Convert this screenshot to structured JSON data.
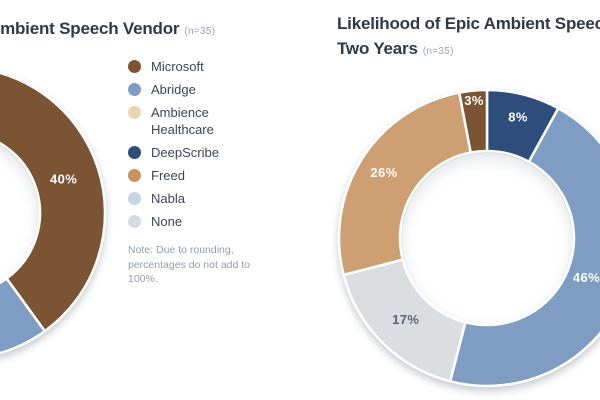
{
  "page": {
    "background": "#ffffff"
  },
  "chart_data": [
    {
      "type": "donut",
      "title": "Ambient Speech Vendor",
      "n_label": "(n=35)",
      "sample_size": 35,
      "note": "Note: Due to rounding, percentages do not add to 100%.",
      "legend_position": "right-of-donut",
      "start_angle": "top",
      "direction": "clockwise",
      "cropped": "left portion of donut cut off at screenshot edge; only Microsoft 40% label and part of Abridge slice visible",
      "segments": [
        {
          "name": "Microsoft",
          "color": "#7A5433",
          "value": 40,
          "label": "40%",
          "label_color": "#FFFFFF",
          "label_radius": 110
        },
        {
          "name": "Abridge",
          "color": "#7F9DC2",
          "value": null,
          "label": ""
        },
        {
          "name": "Ambience Healthcare",
          "color": "#ECD4B3",
          "value": null,
          "label": ""
        },
        {
          "name": "DeepScribe",
          "color": "#2E4D7B",
          "value": null,
          "label": ""
        },
        {
          "name": "Freed",
          "color": "#C8935F",
          "value": null,
          "label": ""
        },
        {
          "name": "Nabla",
          "color": "#C4D6E9",
          "value": null,
          "label": ""
        },
        {
          "name": "None",
          "color": "#D8DCE0",
          "value": null,
          "label": ""
        }
      ]
    },
    {
      "type": "donut",
      "title_line1": "Likelihood of Epic Ambient Speech",
      "title_line2": "Two Years",
      "n_label": "(n=35)",
      "sample_size": 35,
      "start_angle": "top",
      "direction": "clockwise",
      "legend_visible": false,
      "cropped": "right side of donut, 46% label and title cut off at screenshot edge",
      "segments": [
        {
          "name": "",
          "color": "#2E4D7B",
          "value": 8,
          "label": "8%",
          "label_color": "#FFFFFF",
          "label_radius": 125
        },
        {
          "name": "",
          "color": "#7F9DC2",
          "value": 46,
          "label": "46%",
          "label_color": "#FFFFFF",
          "label_radius": 107
        },
        {
          "name": "",
          "color": "#DBDEE1",
          "value": 17,
          "label": "17%",
          "label_color": "#5B626E",
          "label_radius": 115
        },
        {
          "name": "",
          "color": "#CE9F72",
          "value": 26,
          "label": "26%",
          "label_color": "#FFFFFF",
          "label_radius": 122
        },
        {
          "name": "",
          "color": "#7A5433",
          "value": 3,
          "label": "3%",
          "label_color": "#FFFFFF",
          "label_radius": 138
        }
      ]
    }
  ]
}
